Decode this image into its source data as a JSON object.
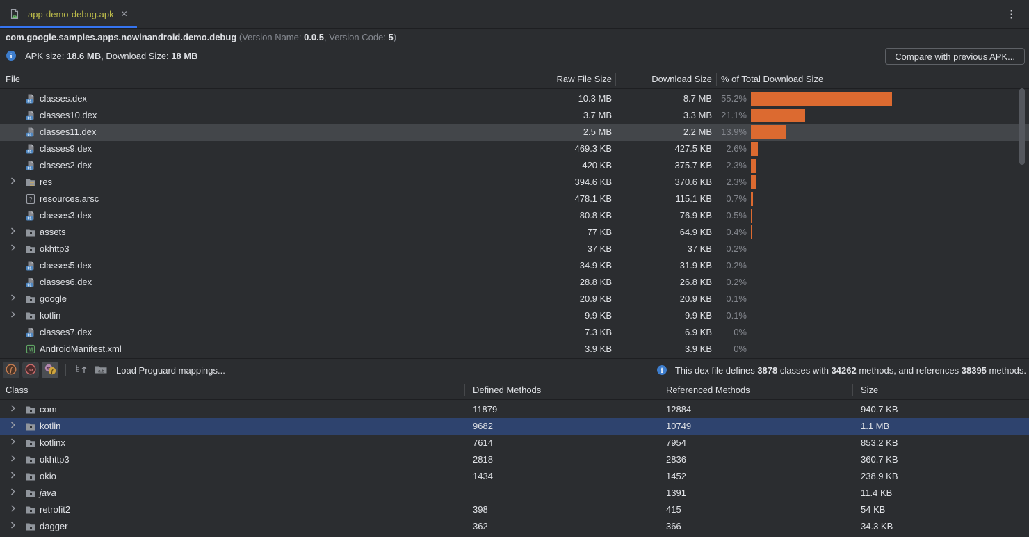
{
  "tab": {
    "title": "app-demo-debug.apk"
  },
  "window": {
    "kebab_icon": "⋮",
    "close_icon": "✕"
  },
  "header": {
    "package_name": "com.google.samples.apps.nowinandroid.demo.debug",
    "version_prefix": "(Version Name: ",
    "version_name": "0.0.5",
    "version_mid": ", Version Code: ",
    "version_code": "5",
    "version_suffix": ")",
    "apk_size_label": "APK size: ",
    "apk_size_value": "18.6 MB",
    "download_size_label": ", Download Size: ",
    "download_size_value": "18 MB",
    "compare_button_label": "Compare with previous APK..."
  },
  "file_table": {
    "columns": {
      "file": "File",
      "raw": "Raw File Size",
      "download": "Download Size",
      "percent": "% of Total Download Size"
    },
    "rows": [
      {
        "name": "classes.dex",
        "raw": "10.3 MB",
        "download": "8.7 MB",
        "pct": "55.2%",
        "pct_num": 55.2
      },
      {
        "name": "classes10.dex",
        "raw": "3.7 MB",
        "download": "3.3 MB",
        "pct": "21.1%",
        "pct_num": 21.1
      },
      {
        "name": "classes11.dex",
        "raw": "2.5 MB",
        "download": "2.2 MB",
        "pct": "13.9%",
        "pct_num": 13.9
      },
      {
        "name": "classes9.dex",
        "raw": "469.3 KB",
        "download": "427.5 KB",
        "pct": "2.6%",
        "pct_num": 2.6
      },
      {
        "name": "classes2.dex",
        "raw": "420 KB",
        "download": "375.7 KB",
        "pct": "2.3%",
        "pct_num": 2.3
      },
      {
        "name": "res",
        "raw": "394.6 KB",
        "download": "370.6 KB",
        "pct": "2.3%",
        "pct_num": 2.3
      },
      {
        "name": "resources.arsc",
        "raw": "478.1 KB",
        "download": "115.1 KB",
        "pct": "0.7%",
        "pct_num": 0.7
      },
      {
        "name": "classes3.dex",
        "raw": "80.8 KB",
        "download": "76.9 KB",
        "pct": "0.5%",
        "pct_num": 0.5
      },
      {
        "name": "assets",
        "raw": "77 KB",
        "download": "64.9 KB",
        "pct": "0.4%",
        "pct_num": 0.4
      },
      {
        "name": "okhttp3",
        "raw": "37 KB",
        "download": "37 KB",
        "pct": "0.2%",
        "pct_num": 0.2
      },
      {
        "name": "classes5.dex",
        "raw": "34.9 KB",
        "download": "31.9 KB",
        "pct": "0.2%",
        "pct_num": 0.2
      },
      {
        "name": "classes6.dex",
        "raw": "28.8 KB",
        "download": "26.8 KB",
        "pct": "0.2%",
        "pct_num": 0.2
      },
      {
        "name": "google",
        "raw": "20.9 KB",
        "download": "20.9 KB",
        "pct": "0.1%",
        "pct_num": 0.1
      },
      {
        "name": "kotlin",
        "raw": "9.9 KB",
        "download": "9.9 KB",
        "pct": "0.1%",
        "pct_num": 0.1
      },
      {
        "name": "classes7.dex",
        "raw": "7.3 KB",
        "download": "6.9 KB",
        "pct": "0%",
        "pct_num": 0
      },
      {
        "name": "AndroidManifest.xml",
        "raw": "3.9 KB",
        "download": "3.9 KB",
        "pct": "0%",
        "pct_num": 0
      }
    ]
  },
  "toolbar": {
    "load_mappings_label": "Load Proguard mappings...",
    "summary": {
      "p1": "This dex file defines ",
      "classes": "3878",
      "p2": " classes with ",
      "methods": "34262",
      "p3": " methods, and references ",
      "references": "38395",
      "p4": " methods."
    }
  },
  "class_table": {
    "columns": {
      "class": "Class",
      "defined": "Defined Methods",
      "referenced": "Referenced Methods",
      "size": "Size"
    },
    "rows": [
      {
        "name": "com",
        "defined": "11879",
        "referenced": "12884",
        "size": "940.7 KB"
      },
      {
        "name": "kotlin",
        "defined": "9682",
        "referenced": "10749",
        "size": "1.1 MB"
      },
      {
        "name": "kotlinx",
        "defined": "7614",
        "referenced": "7954",
        "size": "853.2 KB"
      },
      {
        "name": "okhttp3",
        "defined": "2818",
        "referenced": "2836",
        "size": "360.7 KB"
      },
      {
        "name": "okio",
        "defined": "1434",
        "referenced": "1452",
        "size": "238.9 KB"
      },
      {
        "name": "java",
        "defined": "",
        "referenced": "1391",
        "size": "11.4 KB"
      },
      {
        "name": "retrofit2",
        "defined": "398",
        "referenced": "415",
        "size": "54 KB"
      },
      {
        "name": "dagger",
        "defined": "362",
        "referenced": "366",
        "size": "34.3 KB"
      }
    ]
  },
  "colors": {
    "bar_orange": "#dc6a30",
    "selection_blue": "#2e436e",
    "selection_gray": "#43464a",
    "tab_title_yellow": "#bdbc4a",
    "accent_blue": "#3574f0",
    "info_blue": "#3d7dcc"
  }
}
